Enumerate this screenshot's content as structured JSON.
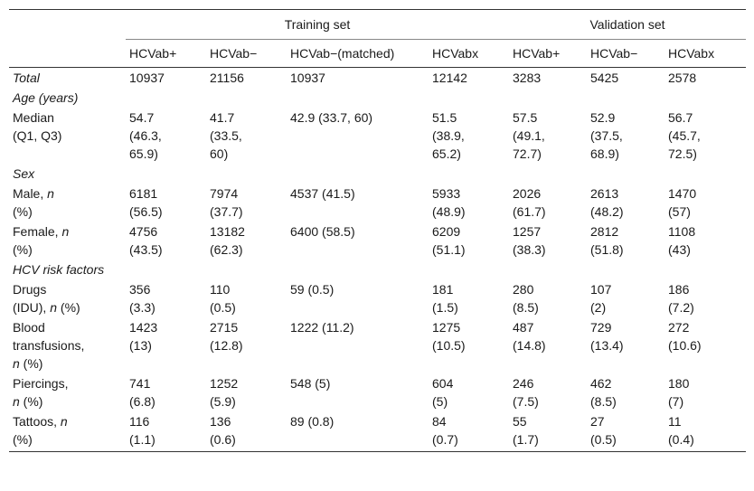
{
  "header": {
    "training_group": "Training set",
    "validation_group": "Validation set",
    "columns": [
      "HCVab+",
      "HCVab−",
      "HCVab−(matched)",
      "HCVabx",
      "HCVab+",
      "HCVab−",
      "HCVabx"
    ]
  },
  "rows": {
    "total": {
      "label": "Total",
      "values": [
        "10937",
        "21156",
        "10937",
        "12142",
        "3283",
        "5425",
        "2578"
      ]
    },
    "age_section": "Age (years)",
    "median": {
      "label_lines": [
        "Median",
        "(Q1, Q3)"
      ],
      "values": [
        [
          "54.7",
          "(46.3,",
          "65.9)"
        ],
        [
          "41.7",
          "(33.5,",
          "60)"
        ],
        [
          "42.9 (33.7, 60)"
        ],
        [
          "51.5",
          "(38.9,",
          "65.2)"
        ],
        [
          "57.5",
          "(49.1,",
          "72.7)"
        ],
        [
          "52.9",
          "(37.5,",
          "68.9)"
        ],
        [
          "56.7",
          "(45.7,",
          "72.5)"
        ]
      ]
    },
    "sex_section": "Sex",
    "male": {
      "label_lines": [
        "Male, ",
        "n",
        "(%)"
      ],
      "values": [
        [
          "6181",
          "(56.5)"
        ],
        [
          "7974",
          "(37.7)"
        ],
        [
          "4537 (41.5)"
        ],
        [
          "5933",
          "(48.9)"
        ],
        [
          "2026",
          "(61.7)"
        ],
        [
          "2613",
          "(48.2)"
        ],
        [
          "1470",
          "(57)"
        ]
      ]
    },
    "female": {
      "label_lines": [
        "Female, ",
        "n",
        "(%)"
      ],
      "values": [
        [
          "4756",
          "(43.5)"
        ],
        [
          "13182",
          "(62.3)"
        ],
        [
          "6400 (58.5)"
        ],
        [
          "6209",
          "(51.1)"
        ],
        [
          "1257",
          "(38.3)"
        ],
        [
          "2812",
          "(51.8)"
        ],
        [
          "1108",
          "(43)"
        ]
      ]
    },
    "risk_section": "HCV risk factors",
    "drugs": {
      "label_lines": [
        "Drugs",
        "(IDU), ",
        "n",
        " (%)"
      ],
      "values": [
        [
          "356",
          "(3.3)"
        ],
        [
          "110",
          "(0.5)"
        ],
        [
          "59 (0.5)"
        ],
        [
          "181",
          "(1.5)"
        ],
        [
          "280",
          "(8.5)"
        ],
        [
          "107",
          "(2)"
        ],
        [
          "186",
          "(7.2)"
        ]
      ]
    },
    "blood": {
      "label_lines": [
        "Blood",
        "transfusions,",
        "n",
        " (%)"
      ],
      "values": [
        [
          "1423",
          "(13)"
        ],
        [
          "2715",
          "(12.8)"
        ],
        [
          "1222 (11.2)"
        ],
        [
          "1275",
          "(10.5)"
        ],
        [
          "487",
          "(14.8)"
        ],
        [
          "729",
          "(13.4)"
        ],
        [
          "272",
          "(10.6)"
        ]
      ]
    },
    "piercings": {
      "label_lines": [
        "Piercings,",
        "n",
        " (%)"
      ],
      "values": [
        [
          "741",
          "(6.8)"
        ],
        [
          "1252",
          "(5.9)"
        ],
        [
          "548 (5)"
        ],
        [
          "604",
          "(5)"
        ],
        [
          "246",
          "(7.5)"
        ],
        [
          "462",
          "(8.5)"
        ],
        [
          "180",
          "(7)"
        ]
      ]
    },
    "tattoos": {
      "label_lines": [
        "Tattoos, ",
        "n",
        "(%)"
      ],
      "values": [
        [
          "116",
          "(1.1)"
        ],
        [
          "136",
          "(0.6)"
        ],
        [
          "89 (0.8)"
        ],
        [
          "84",
          "(0.7)"
        ],
        [
          "55",
          "(1.7)"
        ],
        [
          "27",
          "(0.5)"
        ],
        [
          "11",
          "(0.4)"
        ]
      ]
    }
  }
}
